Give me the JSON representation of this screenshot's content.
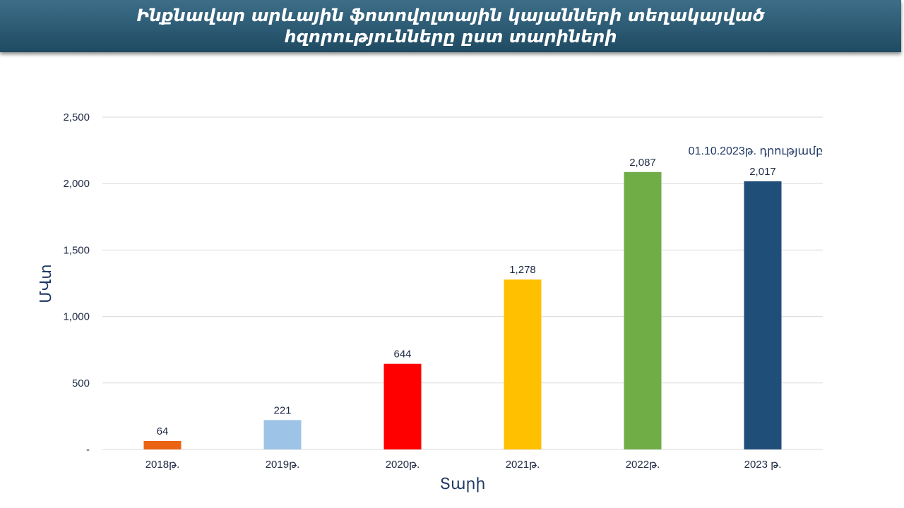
{
  "header": {
    "title_line1": "Ինքնավար արևային ֆոտովոլտային կայանների տեղակայված",
    "title_line2": "հզորությունները ըստ տարիների"
  },
  "colors": {
    "banner": "#2c5a73",
    "gridline": "#d9d9d9",
    "axis_text": "#1f2a44",
    "axis_title": "#1f3864"
  },
  "chart_data": {
    "type": "bar",
    "categories": [
      "2018թ.",
      "2019թ.",
      "2020թ.",
      "2021թ.",
      "2022թ.",
      "2023 թ."
    ],
    "values": [
      64,
      221,
      644,
      1278,
      2087,
      2017
    ],
    "value_labels": [
      "64",
      "221",
      "644",
      "1,278",
      "2,087",
      "2,017"
    ],
    "bar_colors": [
      "#eb6414",
      "#9dc3e6",
      "#ff0000",
      "#ffc000",
      "#70ad47",
      "#1f4e79"
    ],
    "xlabel": "Տարի",
    "ylabel": "ՄՎտ",
    "ylim": [
      0,
      2500
    ],
    "yticks": [
      0,
      500,
      1000,
      1500,
      2000,
      2500
    ],
    "ytick_labels": [
      "-",
      "500",
      "1,000",
      "1,500",
      "2,000",
      "2,500"
    ],
    "grid": true,
    "annotation": "01.10.2023թ. դրությամբ"
  }
}
